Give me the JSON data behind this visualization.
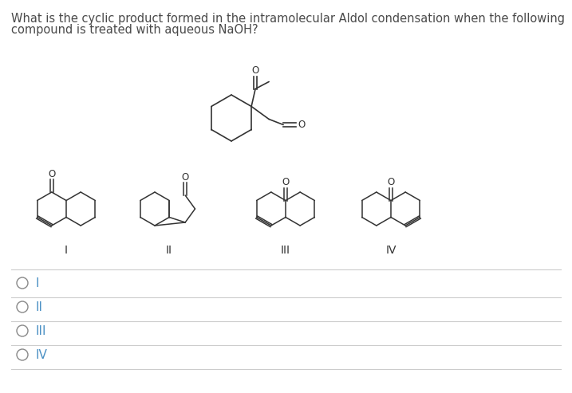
{
  "title_line1": "What is the cyclic product formed in the intramolecular Aldol condensation when the following",
  "title_line2": "compound is treated with aqueous NaOH?",
  "options": [
    "I",
    "II",
    "III",
    "IV"
  ],
  "bg_color": "#ffffff",
  "text_color": "#4a4a4a",
  "title_fontsize": 10.5,
  "option_fontsize": 11,
  "option_text_color": "#4a90c4",
  "label_fontsize": 10,
  "struct_color": "#333333",
  "line_color": "#cccccc",
  "circle_color": "#888888"
}
